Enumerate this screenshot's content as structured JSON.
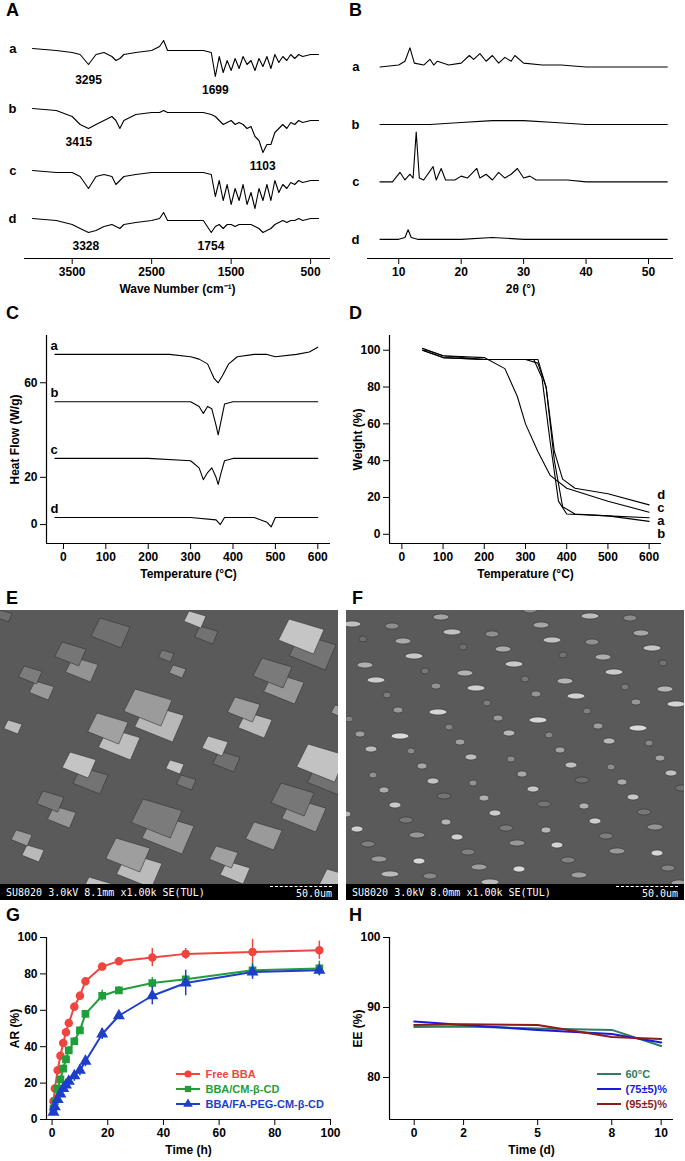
{
  "chart_data": [
    {
      "title": "A",
      "type": "line",
      "x_label": "Wave Number (cm⁻¹)",
      "xlim": [
        4100,
        250
      ],
      "xticks": [
        3500,
        2500,
        1500,
        500
      ],
      "ylim": [
        -5,
        108
      ],
      "tick_labels": "x",
      "legend": "left",
      "x": [
        4000,
        3700,
        3500,
        3400,
        3295,
        3200,
        3100,
        3000,
        2950,
        2900,
        2850,
        2700,
        2500,
        2400,
        2350,
        2300,
        2200,
        2000,
        1850,
        1750,
        1699,
        1650,
        1600,
        1550,
        1500,
        1450,
        1400,
        1350,
        1300,
        1250,
        1200,
        1150,
        1100,
        1050,
        1000,
        950,
        900,
        850,
        800,
        750,
        700,
        650,
        600,
        500,
        400
      ],
      "series": [
        {
          "name": "a",
          "color": "#000000",
          "values": [
            100,
            99,
            98,
            97,
            92,
            97,
            98,
            96,
            94,
            95,
            97,
            98,
            99,
            101,
            104,
            99,
            99,
            99,
            99,
            98,
            86,
            96,
            88,
            94,
            89,
            95,
            90,
            96,
            92,
            94,
            89,
            95,
            91,
            96,
            90,
            97,
            93,
            96,
            94,
            97,
            95,
            97,
            96,
            97,
            97
          ]
        },
        {
          "name": "b",
          "color": "#000000",
          "values": [
            70,
            69,
            66,
            62,
            60,
            62,
            64,
            66,
            64,
            60,
            64,
            67,
            68,
            68,
            69,
            68,
            68,
            68,
            68,
            67,
            66,
            64,
            62,
            63,
            64,
            62,
            63,
            62,
            60,
            61,
            56,
            54,
            48,
            52,
            52,
            58,
            60,
            62,
            60,
            63,
            62,
            64,
            63,
            64,
            64
          ]
        },
        {
          "name": "c",
          "color": "#000000",
          "values": [
            39,
            38,
            38,
            36,
            30,
            36,
            37,
            36,
            32,
            34,
            36,
            37,
            38,
            38,
            38,
            38,
            38,
            38,
            38,
            37,
            26,
            34,
            24,
            32,
            22,
            30,
            24,
            32,
            22,
            28,
            20,
            30,
            24,
            32,
            24,
            34,
            28,
            32,
            30,
            33,
            32,
            34,
            33,
            34,
            34
          ]
        },
        {
          "name": "d",
          "color": "#000000",
          "values": [
            15,
            14,
            12,
            10,
            8,
            9,
            11,
            12,
            11,
            10,
            12,
            13,
            14,
            15,
            18,
            14,
            14,
            14,
            14,
            8,
            11,
            12,
            10,
            12,
            12,
            11,
            12,
            12,
            12,
            12,
            11,
            10,
            8,
            9,
            10,
            12,
            13,
            14,
            13,
            14,
            14,
            15,
            14,
            15,
            15
          ]
        }
      ],
      "annotations": [
        {
          "x": 3295,
          "y": 84,
          "text": "3295"
        },
        {
          "x": 1699,
          "y": 79,
          "text": "1699"
        },
        {
          "x": 3415,
          "y": 53,
          "text": "3415"
        },
        {
          "x": 1103,
          "y": 41,
          "text": "1103"
        },
        {
          "x": 3328,
          "y": 1,
          "text": "3328"
        },
        {
          "x": 1754,
          "y": 1,
          "text": "1754"
        }
      ]
    },
    {
      "title": "B",
      "type": "line",
      "x_label": "2θ (°)",
      "xlim": [
        5,
        54
      ],
      "xticks": [
        10,
        20,
        30,
        40,
        50
      ],
      "ylim": [
        0,
        118
      ],
      "tick_labels": "x",
      "legend": "left",
      "series": [
        {
          "name": "a",
          "color": "#000000",
          "x": [
            7,
            10,
            11,
            11.8,
            12.5,
            14,
            15,
            15.6,
            16.2,
            18,
            20,
            21.3,
            22,
            23,
            24,
            25,
            26,
            27,
            28,
            28.6,
            30,
            33,
            36,
            40,
            45,
            50,
            53
          ],
          "values": [
            100,
            101,
            103,
            110,
            102,
            101,
            104,
            101,
            103,
            101,
            102,
            106,
            104,
            107,
            103,
            106,
            102,
            105,
            103,
            106,
            102,
            101,
            101,
            100,
            100,
            100,
            100
          ]
        },
        {
          "name": "b",
          "color": "#000000",
          "x": [
            7,
            10,
            15,
            20,
            25,
            28,
            30,
            35,
            40,
            45,
            50,
            53
          ],
          "values": [
            70,
            70,
            70,
            71,
            72,
            72,
            72,
            71,
            70,
            70,
            70,
            70
          ]
        },
        {
          "name": "c",
          "color": "#000000",
          "x": [
            7,
            9,
            10.2,
            11,
            11.8,
            12.3,
            12.8,
            13.3,
            14,
            15.5,
            16,
            16.8,
            17.5,
            19,
            20,
            21,
            22.5,
            23,
            24,
            25,
            26,
            27,
            28,
            29,
            30,
            31,
            32,
            34,
            37,
            40,
            45,
            50,
            53
          ],
          "values": [
            40,
            40,
            45,
            41,
            44,
            42,
            66,
            42,
            41,
            48,
            41,
            47,
            41,
            41,
            43,
            42,
            47,
            42,
            44,
            41,
            45,
            42,
            44,
            47,
            42,
            43,
            41,
            41,
            41,
            40,
            40,
            40,
            40
          ]
        },
        {
          "name": "d",
          "color": "#000000",
          "x": [
            7,
            10,
            11,
            11.5,
            12,
            13,
            15,
            20,
            25,
            30,
            40,
            50,
            53
          ],
          "values": [
            10,
            10,
            11,
            15,
            11,
            10,
            10,
            10,
            11,
            10,
            10,
            10,
            10
          ]
        }
      ]
    },
    {
      "title": "C",
      "type": "line",
      "x_label": "Temperature (°C)",
      "y_label": "Heat Flow (W/g)",
      "xlim": [
        -40,
        630
      ],
      "xticks": [
        0,
        100,
        200,
        300,
        400,
        500,
        600
      ],
      "ylim": [
        -8,
        80
      ],
      "yticks": [
        0,
        20,
        60
      ],
      "legend": "left",
      "series": [
        {
          "name": "a",
          "color": "#000000",
          "x": [
            -20,
            50,
            100,
            150,
            200,
            250,
            300,
            320,
            340,
            355,
            365,
            375,
            390,
            410,
            450,
            480,
            500,
            550,
            580,
            600
          ],
          "values": [
            72,
            72,
            72,
            72,
            72,
            72,
            71,
            70,
            68,
            62,
            60,
            63,
            68,
            71,
            72,
            72,
            71,
            72,
            73,
            75
          ]
        },
        {
          "name": "b",
          "color": "#000000",
          "x": [
            -20,
            50,
            100,
            200,
            300,
            320,
            330,
            340,
            350,
            360,
            365,
            372,
            380,
            400,
            450,
            500,
            600
          ],
          "values": [
            52,
            52,
            52,
            52,
            52,
            50,
            47,
            50,
            49,
            42,
            38,
            44,
            51,
            52,
            52,
            52,
            52
          ]
        },
        {
          "name": "c",
          "color": "#000000",
          "x": [
            -20,
            50,
            100,
            200,
            300,
            320,
            330,
            340,
            350,
            360,
            365,
            372,
            380,
            400,
            450,
            500,
            600
          ],
          "values": [
            28,
            28,
            28,
            28,
            27,
            24,
            19,
            22,
            24,
            20,
            17,
            22,
            27,
            28,
            28,
            28,
            28
          ]
        },
        {
          "name": "d",
          "color": "#000000",
          "x": [
            -20,
            100,
            200,
            300,
            360,
            370,
            380,
            450,
            480,
            490,
            500,
            600
          ],
          "values": [
            3,
            3,
            3,
            3,
            2,
            0,
            3,
            3,
            1,
            -1,
            3,
            3
          ]
        }
      ]
    },
    {
      "title": "D",
      "type": "line",
      "x_label": "Temperature (°C)",
      "y_label": "Weight (%)",
      "xlim": [
        -30,
        630
      ],
      "xticks": [
        0,
        100,
        200,
        300,
        400,
        500,
        600
      ],
      "ylim": [
        -5,
        108
      ],
      "yticks": [
        0,
        20,
        40,
        60,
        80,
        100
      ],
      "legend": "right",
      "series": [
        {
          "name": "a",
          "color": "#000000",
          "x": [
            50,
            60,
            100,
            200,
            300,
            330,
            350,
            370,
            390,
            420,
            500,
            600
          ],
          "values": [
            100,
            100,
            97,
            95,
            95,
            95,
            80,
            40,
            15,
            11,
            10,
            9
          ]
        },
        {
          "name": "b",
          "color": "#000000",
          "x": [
            50,
            100,
            200,
            320,
            340,
            360,
            380,
            400,
            500,
            600
          ],
          "values": [
            100,
            96,
            95,
            95,
            85,
            50,
            18,
            11,
            10,
            7
          ]
        },
        {
          "name": "c",
          "color": "#000000",
          "x": [
            50,
            100,
            200,
            250,
            280,
            300,
            330,
            360,
            400,
            500,
            600
          ],
          "values": [
            101,
            97,
            96,
            90,
            75,
            60,
            45,
            32,
            25,
            18,
            12
          ]
        },
        {
          "name": "d",
          "color": "#000000",
          "x": [
            50,
            100,
            200,
            300,
            330,
            350,
            370,
            390,
            420,
            500,
            600
          ],
          "values": [
            100,
            96,
            95,
            95,
            93,
            80,
            45,
            30,
            25,
            22,
            16
          ]
        }
      ]
    },
    {
      "title": "G",
      "type": "line",
      "x_label": "Time (h)",
      "y_label": "AR (%)",
      "xlim": [
        -2,
        100
      ],
      "xticks": [
        0,
        20,
        40,
        60,
        80,
        100
      ],
      "ylim": [
        0,
        100
      ],
      "yticks": [
        0,
        20,
        40,
        60,
        80,
        100
      ],
      "legend": "bottom-right",
      "x": [
        0.5,
        1,
        2,
        3,
        4,
        5,
        6,
        8,
        10,
        12,
        18,
        24,
        36,
        48,
        72,
        96
      ],
      "series": [
        {
          "name": "Free BBA",
          "color": "#f0453f",
          "marker": "circle",
          "values": [
            10,
            17,
            27,
            35,
            42,
            48,
            53,
            62,
            68,
            76,
            84,
            87,
            89,
            91,
            92,
            93
          ],
          "errors": [
            1,
            1,
            2,
            2,
            2,
            2,
            2,
            2,
            2,
            2,
            1,
            1,
            5,
            3,
            7,
            5
          ]
        },
        {
          "name": "BBA/CM-β-CD",
          "color": "#1f9e3a",
          "marker": "square",
          "values": [
            6,
            10,
            17,
            22,
            28,
            33,
            38,
            43,
            49,
            58,
            68,
            71,
            75,
            77,
            82,
            83
          ],
          "errors": [
            1,
            1,
            1,
            2,
            2,
            2,
            2,
            2,
            2,
            2,
            3,
            2,
            3,
            2,
            4,
            4
          ]
        },
        {
          "name": "BBA/FA-PEG-CM-β-CD",
          "color": "#1f3fc9",
          "marker": "triangle",
          "values": [
            4,
            7,
            11,
            14,
            17,
            19,
            21,
            24,
            27,
            32,
            47,
            57,
            68,
            75,
            81,
            82
          ],
          "errors": [
            1,
            1,
            1,
            2,
            2,
            2,
            2,
            3,
            3,
            3,
            3,
            2,
            5,
            7,
            4,
            3
          ]
        }
      ]
    },
    {
      "title": "H",
      "type": "line",
      "x_label": "Time (d)",
      "y_label": "EE (%)",
      "xlim": [
        -1,
        10.5
      ],
      "xticks": [
        0,
        2,
        5,
        8,
        10
      ],
      "ylim": [
        74,
        100
      ],
      "yticks": [
        80,
        90,
        100
      ],
      "legend": "bottom-right",
      "x": [
        0,
        2,
        5,
        8,
        10
      ],
      "series": [
        {
          "name": "60°C",
          "color": "#2e7d60",
          "values": [
            87.2,
            87.3,
            87.0,
            86.8,
            84.5
          ]
        },
        {
          "name": "(75±5)%",
          "color": "#1a1ad8",
          "values": [
            88.0,
            87.5,
            86.8,
            86.2,
            85.0
          ]
        },
        {
          "name": "(95±5)%",
          "color": "#8b1c1c",
          "values": [
            87.5,
            87.6,
            87.5,
            85.8,
            85.5
          ]
        }
      ]
    }
  ],
  "images": [
    {
      "title": "E",
      "caption": "SU8020 3.0kV 8.1mm x1.00k SE(TUL)",
      "scale_bar": "50.0um"
    },
    {
      "title": "F",
      "caption": "SU8020 3.0kV 8.0mm x1.00k SE(TUL)",
      "scale_bar": "50.0um"
    }
  ]
}
